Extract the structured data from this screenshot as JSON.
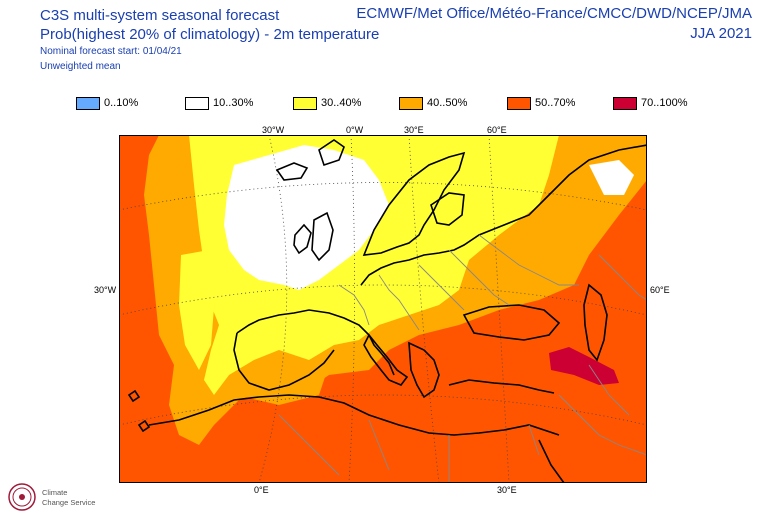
{
  "header": {
    "title": "C3S multi-system seasonal forecast",
    "subtitle": "Prob(highest 20% of climatology) - 2m temperature",
    "start": "Nominal forecast start: 01/04/21",
    "mean": "Unweighted mean",
    "centres": "ECMWF/Met Office/Météo-France/CMCC/DWD/NCEP/JMA",
    "season": "JJA 2021"
  },
  "legend": [
    {
      "label": "0..10%",
      "color": "#66aaff"
    },
    {
      "label": "10..30%",
      "color": "#ffffff"
    },
    {
      "label": "30..40%",
      "color": "#ffff33"
    },
    {
      "label": "40..50%",
      "color": "#ffaa00"
    },
    {
      "label": "50..70%",
      "color": "#ff5500"
    },
    {
      "label": "70..100%",
      "color": "#cc0033"
    }
  ],
  "map": {
    "region": "Europe",
    "top_labels": [
      "30°W",
      "0°W",
      "30°E",
      "60°E"
    ],
    "bottom_labels": [
      "0°E",
      "30°E"
    ],
    "left_label": "30°W",
    "right_label": "60°E"
  },
  "logo": {
    "line1": "Climate",
    "line2": "Change Service"
  }
}
